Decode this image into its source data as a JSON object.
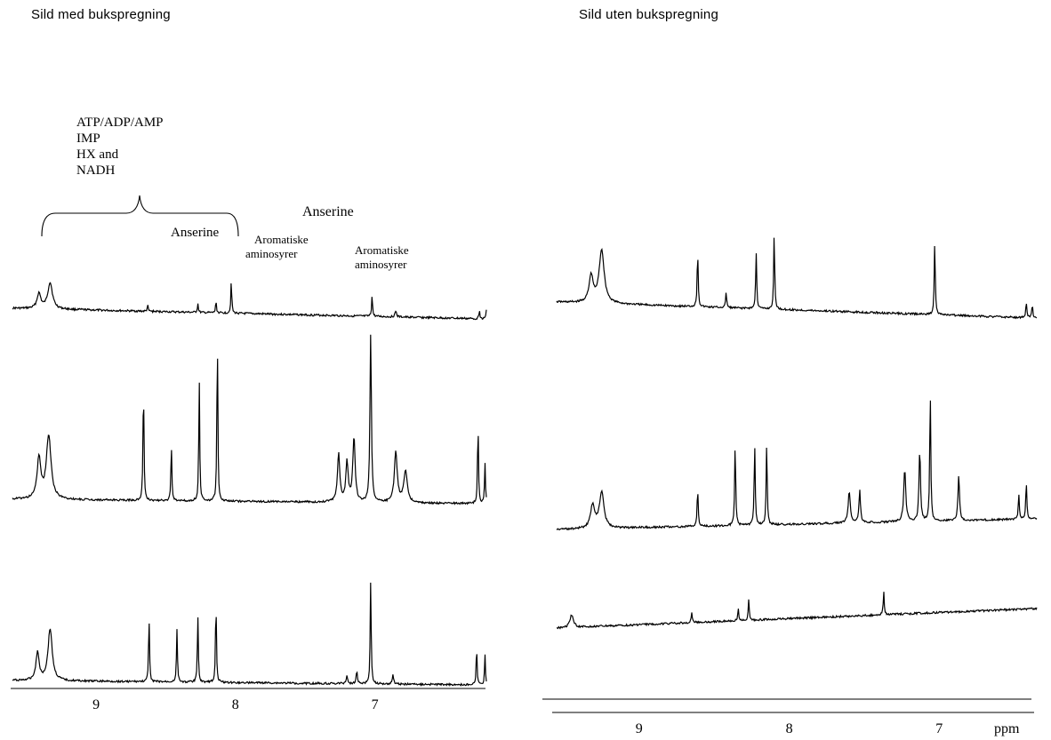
{
  "panels": {
    "left_title": "Sild med bukspregning",
    "right_title": "Sild uten bukspregning"
  },
  "annotations": {
    "group_lines": [
      "ATP/ADP/AMP",
      "IMP",
      "HX and",
      "NADH"
    ],
    "anserine_small": "Anserine",
    "anserine_large": "Anserine",
    "aromatic_1": [
      "Aromatiske",
      "aminosyrer"
    ],
    "aromatic_2": [
      "Aromatiske",
      "aminosyrer"
    ]
  },
  "chart_data": [
    {
      "type": "line",
      "title": "Sild med bukspregning",
      "xlabel": "",
      "x_reversed": true,
      "xlim": [
        9.6,
        6.2
      ],
      "x_ticks": [
        9,
        8,
        7
      ],
      "tick_labels": [
        "9",
        "8",
        "7"
      ],
      "series": [
        {
          "peaks": [
            {
              "ppm": 9.41,
              "h": 0.2,
              "w": 0.016
            },
            {
              "ppm": 9.33,
              "h": 0.35,
              "w": 0.02
            },
            {
              "ppm": 8.63,
              "h": 0.08,
              "w": 0.004
            },
            {
              "ppm": 8.27,
              "h": 0.12,
              "w": 0.004
            },
            {
              "ppm": 8.14,
              "h": 0.15,
              "w": 0.004
            },
            {
              "ppm": 8.03,
              "h": 0.42,
              "w": 0.004
            },
            {
              "ppm": 7.02,
              "h": 0.28,
              "w": 0.004
            },
            {
              "ppm": 6.85,
              "h": 0.08,
              "w": 0.006
            },
            {
              "ppm": 6.25,
              "h": 0.12,
              "w": 0.004
            },
            {
              "ppm": 6.2,
              "h": 0.12,
              "w": 0.004
            }
          ]
        },
        {
          "peaks": [
            {
              "ppm": 9.41,
              "h": 0.25,
              "w": 0.016
            },
            {
              "ppm": 9.34,
              "h": 0.4,
              "w": 0.02
            },
            {
              "ppm": 8.66,
              "h": 0.75,
              "w": 0.004
            },
            {
              "ppm": 8.46,
              "h": 0.35,
              "w": 0.004
            },
            {
              "ppm": 8.26,
              "h": 0.75,
              "w": 0.004
            },
            {
              "ppm": 8.13,
              "h": 1.05,
              "w": 0.004
            },
            {
              "ppm": 7.26,
              "h": 0.3,
              "w": 0.01
            },
            {
              "ppm": 7.2,
              "h": 0.25,
              "w": 0.01
            },
            {
              "ppm": 7.15,
              "h": 0.4,
              "w": 0.01
            },
            {
              "ppm": 7.03,
              "h": 1.05,
              "w": 0.006
            },
            {
              "ppm": 6.85,
              "h": 0.32,
              "w": 0.012
            },
            {
              "ppm": 6.78,
              "h": 0.2,
              "w": 0.015
            },
            {
              "ppm": 6.26,
              "h": 0.5,
              "w": 0.004
            },
            {
              "ppm": 6.21,
              "h": 0.25,
              "w": 0.004
            }
          ]
        },
        {
          "peaks": [
            {
              "ppm": 9.42,
              "h": 0.24,
              "w": 0.014
            },
            {
              "ppm": 9.33,
              "h": 0.45,
              "w": 0.018
            },
            {
              "ppm": 8.62,
              "h": 0.55,
              "w": 0.004
            },
            {
              "ppm": 8.42,
              "h": 0.46,
              "w": 0.004
            },
            {
              "ppm": 8.27,
              "h": 0.58,
              "w": 0.004
            },
            {
              "ppm": 8.14,
              "h": 0.7,
              "w": 0.004
            },
            {
              "ppm": 7.2,
              "h": 0.07,
              "w": 0.006
            },
            {
              "ppm": 7.13,
              "h": 0.1,
              "w": 0.006
            },
            {
              "ppm": 7.03,
              "h": 0.9,
              "w": 0.004
            },
            {
              "ppm": 6.87,
              "h": 0.08,
              "w": 0.006
            },
            {
              "ppm": 6.27,
              "h": 0.32,
              "w": 0.004
            },
            {
              "ppm": 6.21,
              "h": 0.26,
              "w": 0.004
            }
          ]
        }
      ]
    },
    {
      "type": "line",
      "title": "Sild uten bukspregning",
      "xlabel": "ppm",
      "x_reversed": true,
      "xlim": [
        9.55,
        6.35
      ],
      "x_ticks": [
        9,
        8,
        7
      ],
      "tick_labels": [
        "9",
        "8",
        "7"
      ],
      "series": [
        {
          "peaks": [
            {
              "ppm": 9.32,
              "h": 0.2,
              "w": 0.016
            },
            {
              "ppm": 9.25,
              "h": 0.4,
              "w": 0.02
            },
            {
              "ppm": 8.61,
              "h": 0.42,
              "w": 0.004
            },
            {
              "ppm": 8.42,
              "h": 0.12,
              "w": 0.004
            },
            {
              "ppm": 8.22,
              "h": 0.42,
              "w": 0.004
            },
            {
              "ppm": 8.1,
              "h": 0.56,
              "w": 0.004
            },
            {
              "ppm": 7.03,
              "h": 0.56,
              "w": 0.004
            },
            {
              "ppm": 6.42,
              "h": 0.12,
              "w": 0.004
            },
            {
              "ppm": 6.38,
              "h": 0.1,
              "w": 0.004
            }
          ]
        },
        {
          "peaks": [
            {
              "ppm": 9.31,
              "h": 0.18,
              "w": 0.016
            },
            {
              "ppm": 9.25,
              "h": 0.28,
              "w": 0.018
            },
            {
              "ppm": 8.61,
              "h": 0.3,
              "w": 0.004
            },
            {
              "ppm": 8.36,
              "h": 0.65,
              "w": 0.004
            },
            {
              "ppm": 8.23,
              "h": 0.65,
              "w": 0.004
            },
            {
              "ppm": 8.15,
              "h": 0.65,
              "w": 0.004
            },
            {
              "ppm": 7.6,
              "h": 0.25,
              "w": 0.008
            },
            {
              "ppm": 7.53,
              "h": 0.25,
              "w": 0.006
            },
            {
              "ppm": 7.23,
              "h": 0.4,
              "w": 0.008
            },
            {
              "ppm": 7.13,
              "h": 0.55,
              "w": 0.006
            },
            {
              "ppm": 7.06,
              "h": 1.05,
              "w": 0.004
            },
            {
              "ppm": 6.87,
              "h": 0.35,
              "w": 0.006
            },
            {
              "ppm": 6.47,
              "h": 0.2,
              "w": 0.004
            },
            {
              "ppm": 6.42,
              "h": 0.3,
              "w": 0.004
            }
          ]
        },
        {
          "peaks": [
            {
              "ppm": 9.45,
              "h": 0.1,
              "w": 0.014
            },
            {
              "ppm": 8.65,
              "h": 0.08,
              "w": 0.004
            },
            {
              "ppm": 8.34,
              "h": 0.1,
              "w": 0.004
            },
            {
              "ppm": 8.27,
              "h": 0.16,
              "w": 0.004
            },
            {
              "ppm": 7.37,
              "h": 0.19,
              "w": 0.004
            }
          ]
        }
      ]
    }
  ]
}
